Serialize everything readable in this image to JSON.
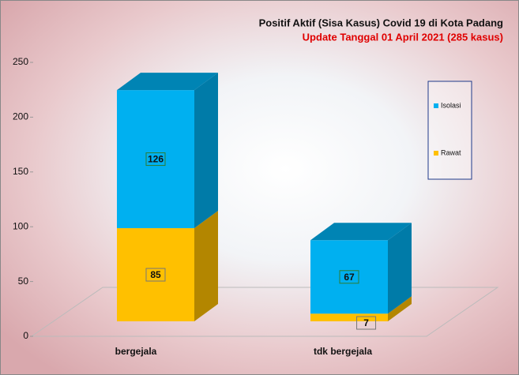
{
  "chart_data": {
    "type": "bar3d-stacked",
    "title": "Positif Aktif  (Sisa Kasus) Covid 19 di Kota Padang",
    "subtitle": "Update Tanggal 01 April 2021  (285  kasus)",
    "categories": [
      "bergejala",
      "tdk bergejala"
    ],
    "series": [
      {
        "name": "Rawat",
        "color": "#ffc000",
        "values": [
          85,
          7
        ]
      },
      {
        "name": "Isolasi",
        "color": "#00b0f0",
        "values": [
          126,
          67
        ]
      }
    ],
    "ylim": [
      0,
      250
    ],
    "yticks": [
      0,
      50,
      100,
      150,
      200,
      250
    ]
  }
}
